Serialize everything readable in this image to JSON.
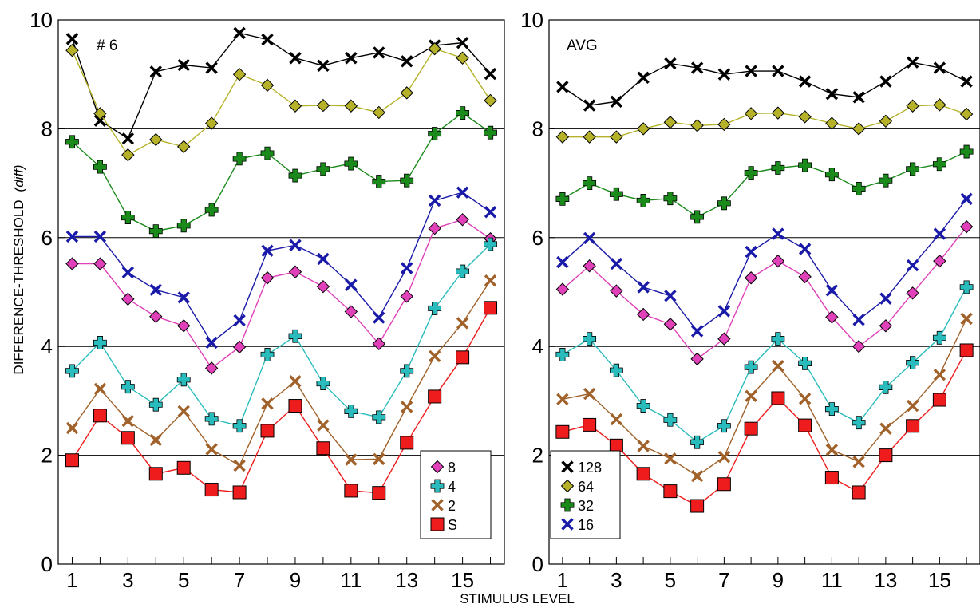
{
  "figure": {
    "xlabel": "STIMULUS LEVEL",
    "ylabel": "DIFFERENCE-THRESHOLD",
    "ylabel_unit": "(diff)"
  },
  "chart_data": [
    {
      "type": "line",
      "panel_label": "# 6",
      "xlim": [
        0.5,
        16.5
      ],
      "ylim": [
        0,
        10
      ],
      "x_tick_labels": [
        "1",
        "3",
        "5",
        "7",
        "9",
        "11",
        "13",
        "15"
      ],
      "y_tick_labels": [
        "0",
        "2",
        "4",
        "6",
        "8",
        "10"
      ],
      "gridlines_y": [
        2,
        4,
        6,
        8
      ],
      "legend": {
        "placement": "bottom-right",
        "entries": [
          "8",
          "4",
          "2",
          "S"
        ]
      },
      "x": [
        1,
        2,
        3,
        4,
        5,
        6,
        7,
        8,
        9,
        10,
        11,
        12,
        13,
        14,
        15,
        16
      ],
      "series": [
        {
          "name": "128",
          "color": "#000000",
          "marker": "x",
          "values": [
            9.65,
            8.15,
            7.82,
            9.05,
            9.17,
            9.12,
            9.76,
            9.64,
            9.3,
            9.16,
            9.3,
            9.4,
            9.24,
            9.53,
            9.58,
            9.01
          ]
        },
        {
          "name": "64",
          "color": "#b5b22a",
          "marker": "diamond",
          "values": [
            9.44,
            8.28,
            7.52,
            7.8,
            7.67,
            8.1,
            9.0,
            8.8,
            8.42,
            8.43,
            8.42,
            8.3,
            8.66,
            9.47,
            9.3,
            8.52
          ]
        },
        {
          "name": "32",
          "color": "#1a8a1a",
          "marker": "plus",
          "values": [
            7.76,
            7.3,
            6.37,
            6.12,
            6.22,
            6.51,
            7.45,
            7.55,
            7.14,
            7.26,
            7.36,
            7.03,
            7.05,
            7.91,
            8.29,
            7.93
          ]
        },
        {
          "name": "16",
          "color": "#1a1aa8",
          "marker": "x",
          "values": [
            6.02,
            6.02,
            5.36,
            5.04,
            4.9,
            4.07,
            4.48,
            5.76,
            5.86,
            5.61,
            5.13,
            4.53,
            5.44,
            6.68,
            6.83,
            6.47
          ]
        },
        {
          "name": "8",
          "color": "#e040b8",
          "marker": "diamond",
          "values": [
            5.52,
            5.52,
            4.87,
            4.55,
            4.38,
            3.6,
            3.99,
            5.26,
            5.37,
            5.1,
            4.64,
            4.05,
            4.92,
            6.17,
            6.33,
            5.98
          ]
        },
        {
          "name": "4",
          "color": "#2abcbc",
          "marker": "plus",
          "values": [
            3.55,
            4.07,
            3.26,
            2.93,
            3.39,
            2.67,
            2.54,
            3.85,
            4.19,
            3.32,
            2.81,
            2.7,
            3.55,
            4.7,
            5.38,
            5.88
          ]
        },
        {
          "name": "2",
          "color": "#a0622a",
          "marker": "x",
          "values": [
            2.5,
            3.22,
            2.63,
            2.28,
            2.81,
            2.11,
            1.81,
            2.95,
            3.36,
            2.55,
            1.92,
            1.93,
            2.89,
            3.82,
            4.43,
            5.21
          ]
        },
        {
          "name": "S",
          "color": "#ee1c1c",
          "marker": "square",
          "values": [
            1.91,
            2.73,
            2.32,
            1.66,
            1.77,
            1.37,
            1.32,
            2.45,
            2.91,
            2.13,
            1.35,
            1.31,
            2.23,
            3.08,
            3.8,
            4.71
          ]
        }
      ]
    },
    {
      "type": "line",
      "panel_label": "AVG",
      "xlim": [
        0.5,
        16.5
      ],
      "ylim": [
        0,
        10
      ],
      "x_tick_labels": [
        "1",
        "3",
        "5",
        "7",
        "9",
        "11",
        "13",
        "15"
      ],
      "y_tick_labels": [
        "0",
        "2",
        "4",
        "6",
        "8",
        "10"
      ],
      "gridlines_y": [
        2,
        4,
        6,
        8
      ],
      "legend": {
        "placement": "bottom-left",
        "entries": [
          "128",
          "64",
          "32",
          "16"
        ]
      },
      "x": [
        1,
        2,
        3,
        4,
        5,
        6,
        7,
        8,
        9,
        10,
        11,
        12,
        13,
        14,
        15,
        16
      ],
      "series": [
        {
          "name": "128",
          "color": "#000000",
          "marker": "x",
          "values": [
            8.77,
            8.43,
            8.5,
            8.94,
            9.2,
            9.12,
            9.0,
            9.06,
            9.06,
            8.87,
            8.64,
            8.58,
            8.87,
            9.22,
            9.12,
            8.87
          ]
        },
        {
          "name": "64",
          "color": "#b5b22a",
          "marker": "diamond",
          "values": [
            7.85,
            7.85,
            7.85,
            8.0,
            8.12,
            8.06,
            8.08,
            8.28,
            8.29,
            8.22,
            8.1,
            8.0,
            8.14,
            8.42,
            8.44,
            8.27
          ]
        },
        {
          "name": "32",
          "color": "#1a8a1a",
          "marker": "plus",
          "values": [
            6.71,
            7.0,
            6.8,
            6.68,
            6.72,
            6.38,
            6.63,
            7.19,
            7.28,
            7.33,
            7.16,
            6.9,
            7.05,
            7.26,
            7.35,
            7.58
          ]
        },
        {
          "name": "16",
          "color": "#1a1aa8",
          "marker": "x",
          "values": [
            5.55,
            5.99,
            5.52,
            5.09,
            4.93,
            4.28,
            4.65,
            5.74,
            6.07,
            5.79,
            5.03,
            4.49,
            4.88,
            5.49,
            6.07,
            6.71
          ]
        },
        {
          "name": "8",
          "color": "#e040b8",
          "marker": "diamond",
          "values": [
            5.05,
            5.48,
            5.02,
            4.59,
            4.41,
            3.77,
            4.14,
            5.26,
            5.57,
            5.28,
            4.54,
            4.0,
            4.38,
            4.98,
            5.57,
            6.2
          ]
        },
        {
          "name": "4",
          "color": "#2abcbc",
          "marker": "plus",
          "values": [
            3.85,
            4.14,
            3.56,
            2.91,
            2.65,
            2.24,
            2.54,
            3.62,
            4.14,
            3.69,
            2.85,
            2.6,
            3.25,
            3.7,
            4.16,
            5.09
          ]
        },
        {
          "name": "2",
          "color": "#a0622a",
          "marker": "x",
          "values": [
            3.03,
            3.13,
            2.66,
            2.17,
            1.94,
            1.62,
            1.97,
            3.09,
            3.64,
            3.04,
            2.1,
            1.88,
            2.49,
            2.91,
            3.48,
            4.51
          ]
        },
        {
          "name": "S",
          "color": "#ee1c1c",
          "marker": "square",
          "values": [
            2.43,
            2.56,
            2.18,
            1.66,
            1.34,
            1.07,
            1.47,
            2.49,
            3.05,
            2.55,
            1.59,
            1.32,
            2.0,
            2.54,
            3.02,
            3.93
          ]
        }
      ]
    }
  ]
}
